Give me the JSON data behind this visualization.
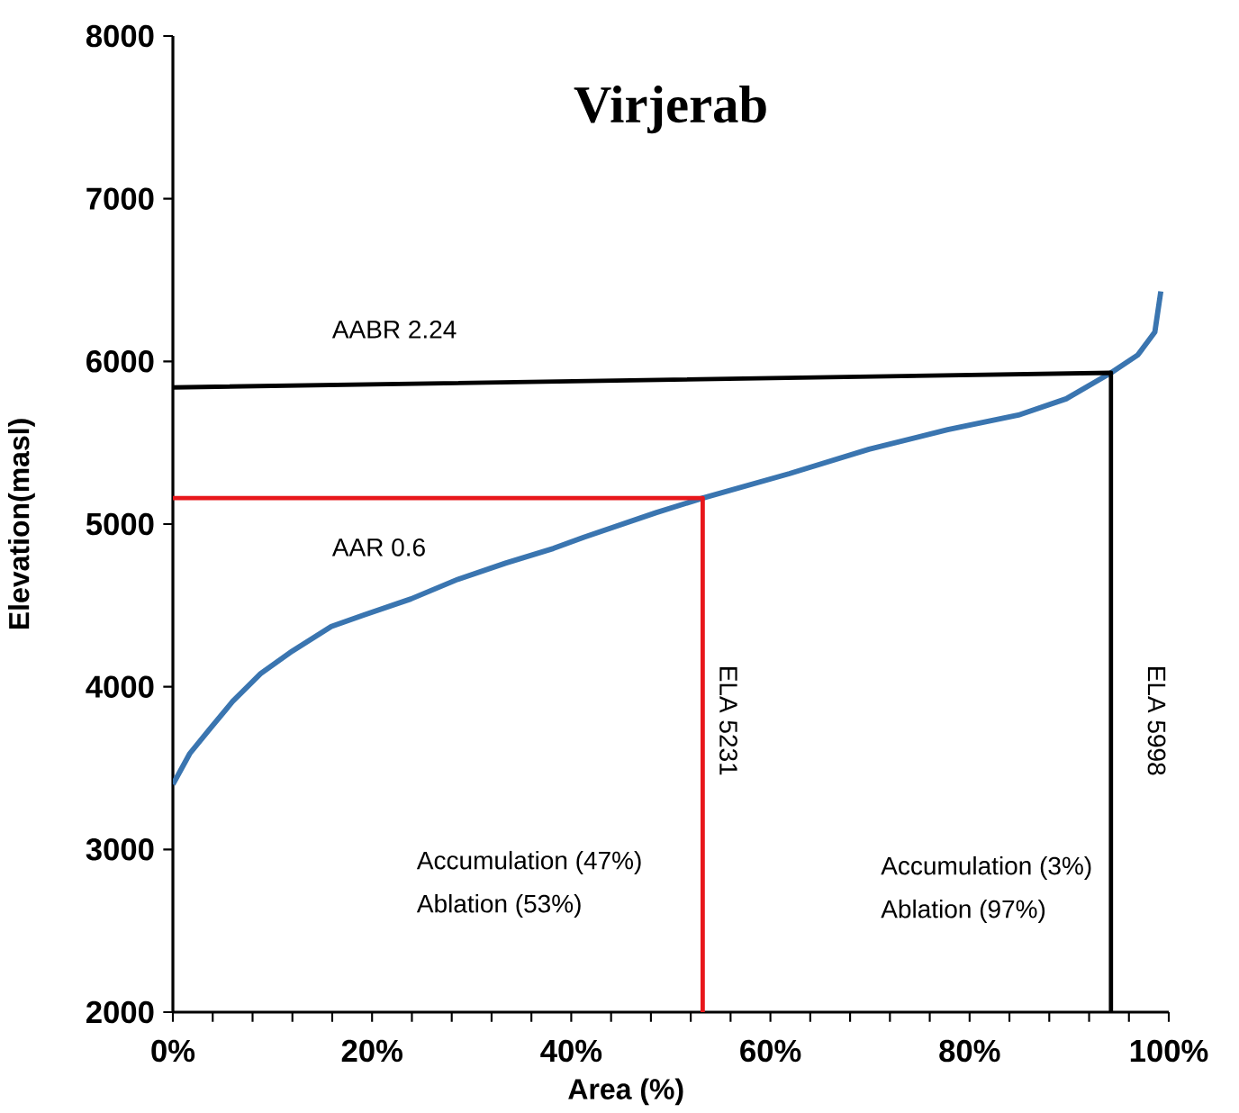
{
  "chart_data": {
    "type": "line",
    "title": "Virjerab",
    "xlabel": "Area (%)",
    "ylabel": "Elevation(masl)",
    "series": [
      {
        "color": "#3a75b0",
        "x": [
          0,
          1.7,
          3.7,
          6.0,
          8.8,
          12.0,
          15.9,
          19.1,
          23.9,
          28.6,
          33.4,
          38.2,
          41.3,
          48.5,
          53.2,
          61.9,
          69.9,
          77.8,
          84.9,
          89.7,
          94.2,
          96.9,
          98.6,
          99.2
        ],
        "values": [
          3400,
          3590,
          3740,
          3910,
          4080,
          4220,
          4370,
          4440,
          4540,
          4660,
          4760,
          4850,
          4920,
          5070,
          5160,
          5310,
          5460,
          5580,
          5670,
          5770,
          5930,
          6040,
          6180,
          6430
        ]
      },
      {
        "color": "#e8171b",
        "x": [
          0,
          53.2,
          53.2
        ],
        "values": [
          5160,
          5160,
          2000
        ]
      },
      {
        "color": "#000000",
        "x": [
          0,
          94.2,
          94.2
        ],
        "values": [
          5840,
          5930,
          2000
        ]
      }
    ],
    "xlim": [
      0,
      100
    ],
    "ylim": [
      2000,
      8000
    ],
    "xticks": [
      {
        "value": 0,
        "label": "0%"
      },
      {
        "value": 4,
        "label": null
      },
      {
        "value": 8,
        "label": null
      },
      {
        "value": 12,
        "label": null
      },
      {
        "value": 16,
        "label": null
      },
      {
        "value": 20,
        "label": "20%"
      },
      {
        "value": 24,
        "label": null
      },
      {
        "value": 28,
        "label": null
      },
      {
        "value": 32,
        "label": null
      },
      {
        "value": 36,
        "label": null
      },
      {
        "value": 40,
        "label": "40%"
      },
      {
        "value": 44,
        "label": null
      },
      {
        "value": 48,
        "label": null
      },
      {
        "value": 52,
        "label": null
      },
      {
        "value": 56,
        "label": null
      },
      {
        "value": 60,
        "label": "60%"
      },
      {
        "value": 64,
        "label": null
      },
      {
        "value": 68,
        "label": null
      },
      {
        "value": 72,
        "label": null
      },
      {
        "value": 76,
        "label": null
      },
      {
        "value": 80,
        "label": "80%"
      },
      {
        "value": 84,
        "label": null
      },
      {
        "value": 88,
        "label": null
      },
      {
        "value": 92,
        "label": null
      },
      {
        "value": 96,
        "label": null
      },
      {
        "value": 100,
        "label": "100%"
      }
    ],
    "yticks": [
      2000,
      3000,
      4000,
      5000,
      6000,
      7000,
      8000
    ],
    "annotations": [
      "AABR 2.24",
      "AAR 0.6",
      "ELA 5231",
      "ELA 5998",
      "Accumulation (47%)",
      "Ablation (53%)",
      "Accumulation (3%)",
      "Ablation (97%)"
    ],
    "grid": false,
    "marker": "none",
    "line_style": "solid"
  }
}
